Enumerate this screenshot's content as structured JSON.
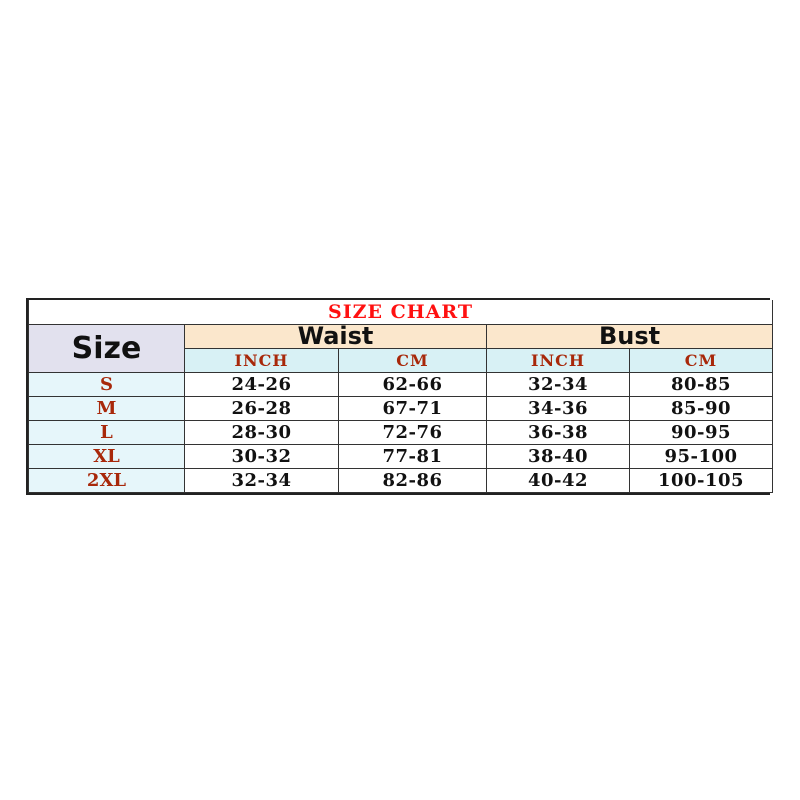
{
  "title": "SIZE CHART",
  "header": {
    "size": "Size",
    "groups": [
      "Waist",
      "Bust"
    ],
    "units": [
      "INCH",
      "CM",
      "INCH",
      "CM"
    ]
  },
  "rows": [
    {
      "size": "S",
      "waist_inch": "24-26",
      "waist_cm": "62-66",
      "bust_inch": "32-34",
      "bust_cm": "80-85"
    },
    {
      "size": "M",
      "waist_inch": "26-28",
      "waist_cm": "67-71",
      "bust_inch": "34-36",
      "bust_cm": "85-90"
    },
    {
      "size": "L",
      "waist_inch": "28-30",
      "waist_cm": "72-76",
      "bust_inch": "36-38",
      "bust_cm": "90-95"
    },
    {
      "size": "XL",
      "waist_inch": "30-32",
      "waist_cm": "77-81",
      "bust_inch": "38-40",
      "bust_cm": "95-100"
    },
    {
      "size": "2XL",
      "waist_inch": "32-34",
      "waist_cm": "82-86",
      "bust_inch": "40-42",
      "bust_cm": "100-105"
    }
  ],
  "colors": {
    "title": "#ff1010",
    "labels": "#a8280a",
    "size_header_bg": "#e2e1ee",
    "group_header_bg": "#fbe7cc",
    "unit_header_bg": "#d8f1f5",
    "size_column_bg": "#e6f6fa"
  }
}
